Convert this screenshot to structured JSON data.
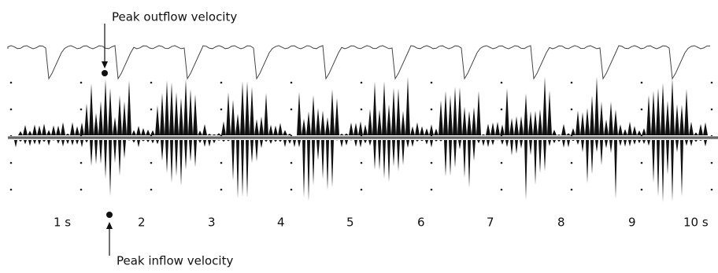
{
  "annotations": {
    "outflow": "Peak outflow velocity",
    "inflow": "Peak inflow velocity"
  },
  "time_labels": [
    "1 s",
    "2",
    "3",
    "4",
    "5",
    "6",
    "7",
    "8",
    "9",
    "10 s"
  ]
}
